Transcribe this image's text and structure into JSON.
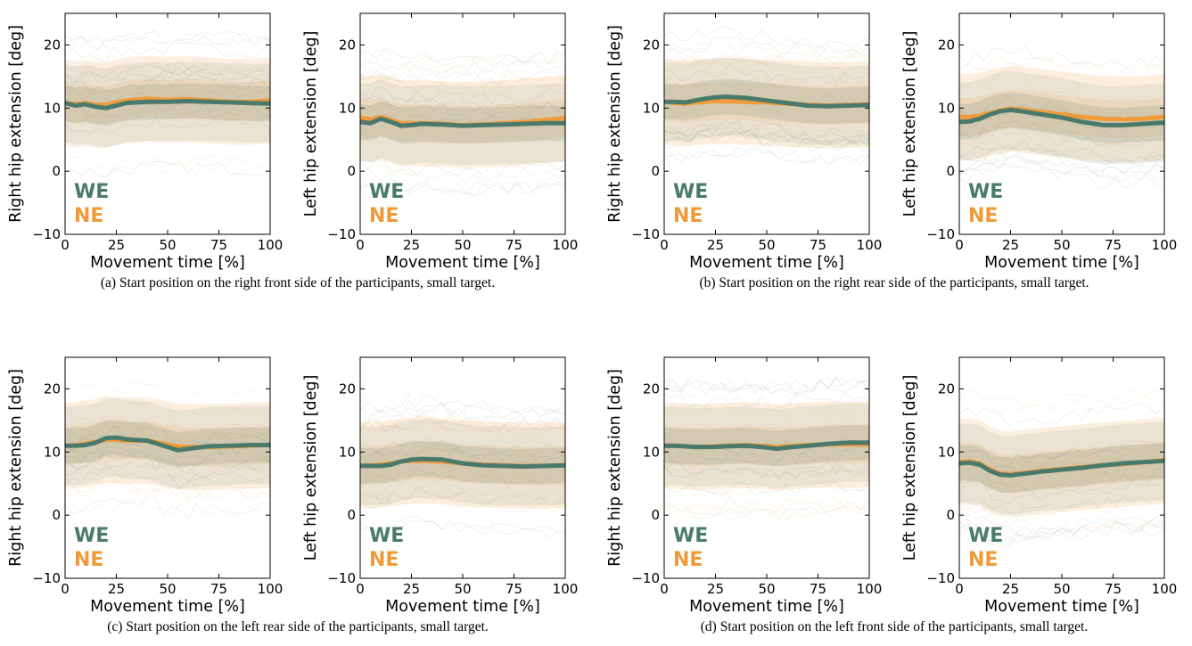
{
  "colors": {
    "we": "#4a7a6c",
    "ne": "#ef9b3a"
  },
  "captions": [
    "(a) Start position on the right front side of the participants, small target.",
    "(b) Start position on the right rear side of the participants, small target.",
    "(c) Start position on the left rear side of the participants, small target.",
    "(d) Start position on the left front side of the participants, small target."
  ],
  "chart_data": [
    {
      "panel": "a",
      "type": "line",
      "xlabel": "Movement time [%]",
      "ylabel": "Right hip extension [deg]",
      "xlim": [
        0,
        100
      ],
      "ylim": [
        -10,
        25
      ],
      "xticks": [
        "0",
        "25",
        "50",
        "75",
        "100"
      ],
      "yticks": [
        "−10",
        "0",
        "10",
        "20"
      ],
      "x": [
        0,
        5,
        10,
        15,
        20,
        25,
        30,
        40,
        50,
        60,
        70,
        80,
        90,
        100
      ],
      "series": [
        {
          "name": "WE",
          "values": [
            10.8,
            10.4,
            10.6,
            10.2,
            10.0,
            10.4,
            10.8,
            11.0,
            11.0,
            11.1,
            11.0,
            10.9,
            10.8,
            10.7
          ]
        },
        {
          "name": "NE",
          "values": [
            10.8,
            10.6,
            10.8,
            10.5,
            10.5,
            10.9,
            11.2,
            11.5,
            11.3,
            11.4,
            11.2,
            11.0,
            11.0,
            11.2
          ]
        }
      ],
      "legend": [
        "WE",
        "NE"
      ]
    },
    {
      "panel": "a",
      "type": "line",
      "xlabel": "Movement time [%]",
      "ylabel": "Left hip extension [deg]",
      "xlim": [
        0,
        100
      ],
      "ylim": [
        -10,
        25
      ],
      "xticks": [
        "0",
        "25",
        "50",
        "75",
        "100"
      ],
      "yticks": [
        "−10",
        "0",
        "10",
        "20"
      ],
      "x": [
        0,
        5,
        10,
        15,
        20,
        25,
        30,
        40,
        50,
        60,
        70,
        80,
        90,
        100
      ],
      "series": [
        {
          "name": "WE",
          "values": [
            7.8,
            7.6,
            8.3,
            7.8,
            7.2,
            7.3,
            7.5,
            7.4,
            7.2,
            7.3,
            7.4,
            7.5,
            7.6,
            7.6
          ]
        },
        {
          "name": "NE",
          "values": [
            8.5,
            8.2,
            8.6,
            8.1,
            7.6,
            7.6,
            7.6,
            7.5,
            7.3,
            7.4,
            7.6,
            7.8,
            8.1,
            8.4
          ]
        }
      ],
      "legend": [
        "WE",
        "NE"
      ]
    },
    {
      "panel": "b",
      "type": "line",
      "xlabel": "Movement time [%]",
      "ylabel": "Right hip extension [deg]",
      "xlim": [
        0,
        100
      ],
      "ylim": [
        -10,
        25
      ],
      "xticks": [
        "0",
        "25",
        "50",
        "75",
        "100"
      ],
      "yticks": [
        "−10",
        "0",
        "10",
        "20"
      ],
      "x": [
        0,
        5,
        10,
        15,
        20,
        25,
        30,
        40,
        50,
        60,
        70,
        80,
        90,
        100
      ],
      "series": [
        {
          "name": "WE",
          "values": [
            11.0,
            11.0,
            10.9,
            11.2,
            11.5,
            11.7,
            11.8,
            11.6,
            11.2,
            10.8,
            10.4,
            10.3,
            10.4,
            10.5
          ]
        },
        {
          "name": "NE",
          "values": [
            11.0,
            10.8,
            10.7,
            10.9,
            11.0,
            11.1,
            11.1,
            11.0,
            10.9,
            10.7,
            10.5,
            10.4,
            10.5,
            10.6
          ]
        }
      ],
      "legend": [
        "WE",
        "NE"
      ]
    },
    {
      "panel": "b",
      "type": "line",
      "xlabel": "Movement time [%]",
      "ylabel": "Left hip extension [deg]",
      "xlim": [
        0,
        100
      ],
      "ylim": [
        -10,
        25
      ],
      "xticks": [
        "0",
        "25",
        "50",
        "75",
        "100"
      ],
      "yticks": [
        "−10",
        "0",
        "10",
        "20"
      ],
      "x": [
        0,
        5,
        10,
        15,
        20,
        25,
        30,
        40,
        50,
        60,
        70,
        80,
        90,
        100
      ],
      "series": [
        {
          "name": "WE",
          "values": [
            7.8,
            7.9,
            8.3,
            9.0,
            9.5,
            9.7,
            9.5,
            9.0,
            8.5,
            7.8,
            7.3,
            7.3,
            7.5,
            7.7
          ]
        },
        {
          "name": "NE",
          "values": [
            8.6,
            8.6,
            8.8,
            9.2,
            9.6,
            9.9,
            9.8,
            9.4,
            9.0,
            8.6,
            8.3,
            8.2,
            8.3,
            8.6
          ]
        }
      ],
      "legend": [
        "WE",
        "NE"
      ]
    },
    {
      "panel": "c",
      "type": "line",
      "xlabel": "Movement time [%]",
      "ylabel": "Right hip extension [deg]",
      "xlim": [
        0,
        100
      ],
      "ylim": [
        -10,
        25
      ],
      "xticks": [
        "0",
        "25",
        "50",
        "75",
        "100"
      ],
      "yticks": [
        "−10",
        "0",
        "10",
        "20"
      ],
      "x": [
        0,
        5,
        10,
        15,
        20,
        25,
        30,
        40,
        50,
        55,
        60,
        70,
        80,
        90,
        100
      ],
      "series": [
        {
          "name": "WE",
          "values": [
            11.0,
            11.0,
            11.1,
            11.5,
            12.2,
            12.3,
            12.0,
            11.8,
            10.8,
            10.3,
            10.5,
            10.9,
            11.0,
            11.1,
            11.1
          ]
        },
        {
          "name": "NE",
          "values": [
            11.0,
            11.1,
            11.3,
            11.6,
            12.0,
            11.9,
            11.8,
            11.8,
            11.2,
            10.9,
            10.8,
            10.8,
            10.9,
            11.0,
            11.1
          ]
        }
      ],
      "legend": [
        "WE",
        "NE"
      ]
    },
    {
      "panel": "c",
      "type": "line",
      "xlabel": "Movement time [%]",
      "ylabel": "Left hip extension [deg]",
      "xlim": [
        0,
        100
      ],
      "ylim": [
        -10,
        25
      ],
      "xticks": [
        "0",
        "25",
        "50",
        "75",
        "100"
      ],
      "yticks": [
        "−10",
        "0",
        "10",
        "20"
      ],
      "x": [
        0,
        5,
        10,
        15,
        20,
        25,
        30,
        40,
        50,
        60,
        70,
        80,
        90,
        100
      ],
      "series": [
        {
          "name": "WE",
          "values": [
            7.8,
            7.8,
            7.8,
            8.0,
            8.5,
            8.8,
            8.9,
            8.8,
            8.2,
            7.9,
            7.8,
            7.7,
            7.8,
            7.9
          ]
        },
        {
          "name": "NE",
          "values": [
            7.9,
            7.9,
            8.0,
            8.2,
            8.5,
            8.6,
            8.6,
            8.5,
            8.2,
            8.0,
            7.9,
            7.8,
            7.8,
            7.9
          ]
        }
      ],
      "legend": [
        "WE",
        "NE"
      ]
    },
    {
      "panel": "d",
      "type": "line",
      "xlabel": "Movement time [%]",
      "ylabel": "Right hip extension [deg]",
      "xlim": [
        0,
        100
      ],
      "ylim": [
        -10,
        25
      ],
      "xticks": [
        "0",
        "25",
        "50",
        "75",
        "100"
      ],
      "yticks": [
        "−10",
        "0",
        "10",
        "20"
      ],
      "x": [
        0,
        5,
        10,
        15,
        20,
        25,
        30,
        40,
        50,
        55,
        60,
        70,
        80,
        90,
        100
      ],
      "series": [
        {
          "name": "WE",
          "values": [
            11.0,
            11.0,
            10.9,
            10.8,
            10.8,
            10.8,
            10.9,
            11.0,
            10.7,
            10.5,
            10.7,
            11.0,
            11.3,
            11.5,
            11.5
          ]
        },
        {
          "name": "NE",
          "values": [
            11.0,
            11.0,
            10.9,
            10.8,
            10.8,
            10.9,
            11.0,
            11.1,
            10.9,
            10.8,
            10.9,
            11.1,
            11.2,
            11.2,
            11.2
          ]
        }
      ],
      "legend": [
        "WE",
        "NE"
      ]
    },
    {
      "panel": "d",
      "type": "line",
      "xlabel": "Movement time [%]",
      "ylabel": "Left hip extension [deg]",
      "xlim": [
        0,
        100
      ],
      "ylim": [
        -10,
        25
      ],
      "xticks": [
        "0",
        "25",
        "50",
        "75",
        "100"
      ],
      "yticks": [
        "−10",
        "0",
        "10",
        "20"
      ],
      "x": [
        0,
        5,
        10,
        15,
        20,
        25,
        30,
        40,
        50,
        60,
        70,
        80,
        90,
        100
      ],
      "series": [
        {
          "name": "WE",
          "values": [
            8.2,
            8.3,
            8.0,
            7.0,
            6.4,
            6.3,
            6.5,
            6.9,
            7.2,
            7.5,
            7.9,
            8.2,
            8.4,
            8.6
          ]
        },
        {
          "name": "NE",
          "values": [
            8.4,
            8.5,
            8.2,
            7.2,
            6.6,
            6.5,
            6.6,
            7.0,
            7.3,
            7.6,
            7.9,
            8.1,
            8.4,
            8.7
          ]
        }
      ],
      "legend": [
        "WE",
        "NE"
      ]
    }
  ]
}
